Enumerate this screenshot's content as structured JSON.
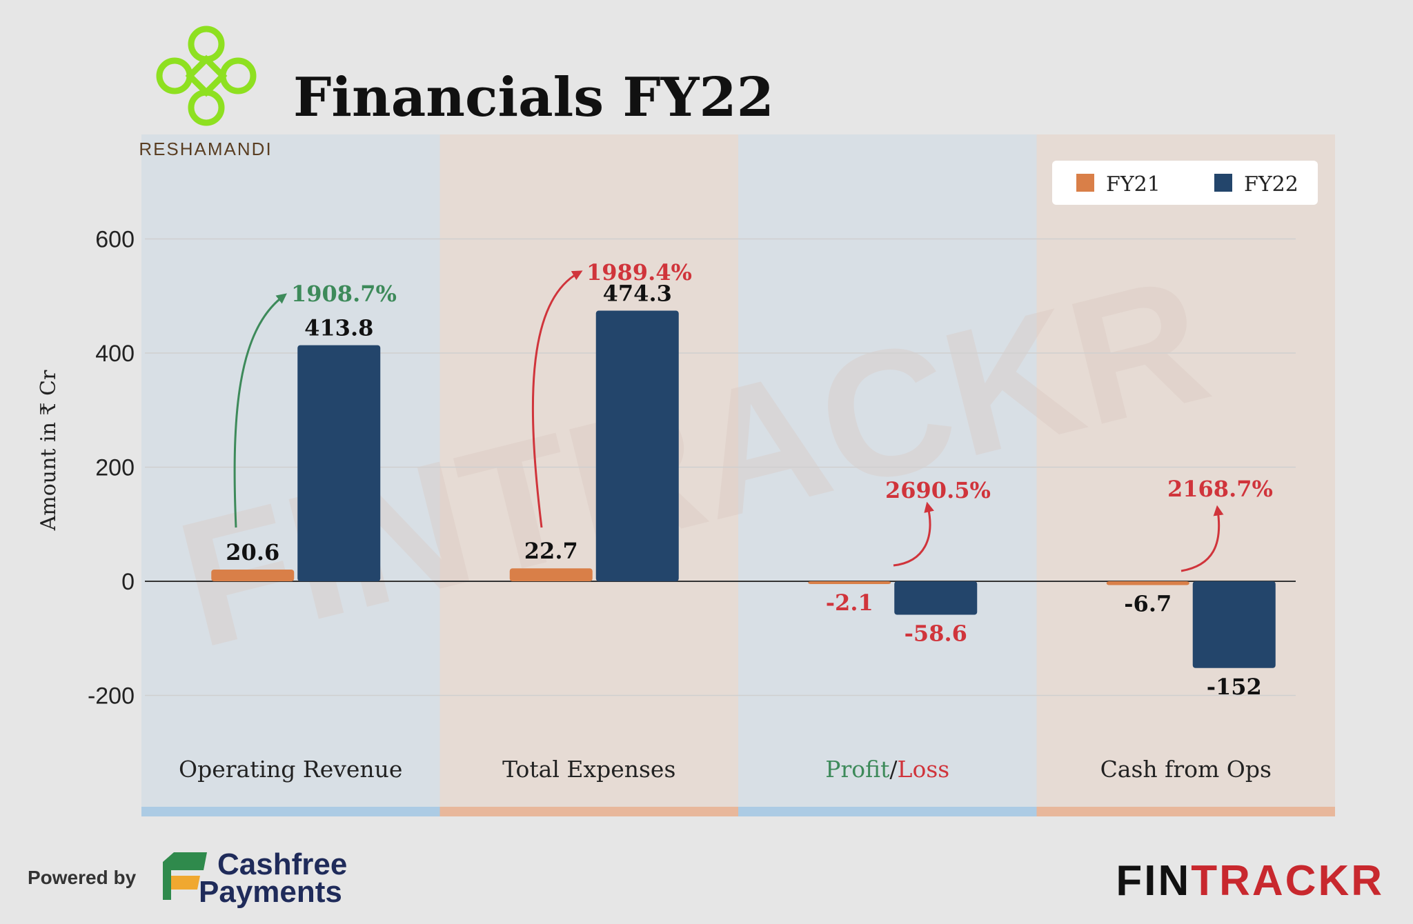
{
  "brand": {
    "company_name": "RESHAMANDI",
    "powered_by": "Powered by",
    "sponsor_line1": "Cashfree",
    "sponsor_line2": "Payments",
    "publisher_part1": "FIN",
    "publisher_part2": "TRACKR",
    "watermark": "FINTRACKR"
  },
  "colors": {
    "fy21": "#d97f48",
    "fy22": "#23456b",
    "growth_green": "#3d8a5a",
    "growth_red": "#d0343b",
    "panel_blue": "#a9c9e4",
    "panel_orange": "#e8b497"
  },
  "chart_data": {
    "type": "bar",
    "title": "Financials FY22",
    "ylabel": "Amount in ₹ Cr",
    "ylim": [
      -300,
      700
    ],
    "yticks": [
      600,
      400,
      200,
      0,
      -200
    ],
    "grid": true,
    "legend_position": "top-right",
    "categories": [
      "Operating Revenue",
      "Total Expenses",
      "Profit/Loss",
      "Cash from Ops"
    ],
    "category_label_parts": [
      [
        {
          "text": "Operating Revenue",
          "color": "#222222"
        }
      ],
      [
        {
          "text": "Total Expenses",
          "color": "#222222"
        }
      ],
      [
        {
          "text": "Profit",
          "color": "#3d8a5a"
        },
        {
          "text": "/",
          "color": "#222222"
        },
        {
          "text": "Loss",
          "color": "#d0343b"
        }
      ],
      [
        {
          "text": "Cash from Ops",
          "color": "#222222"
        }
      ]
    ],
    "series": [
      {
        "name": "FY21",
        "values": [
          20.6,
          22.7,
          -2.1,
          -6.7
        ],
        "labels": [
          "20.6",
          "22.7",
          "-2.1",
          "-6.7"
        ],
        "label_colors": [
          "#111111",
          "#111111",
          "#d0343b",
          "#111111"
        ]
      },
      {
        "name": "FY22",
        "values": [
          413.8,
          474.3,
          -58.6,
          -152
        ],
        "labels": [
          "413.8",
          "474.3",
          "-58.6",
          "-152"
        ],
        "label_colors": [
          "#111111",
          "#111111",
          "#d0343b",
          "#111111"
        ]
      }
    ],
    "annotations": [
      {
        "category": "Operating Revenue",
        "text": "1908.7%",
        "color": "#3d8a5a"
      },
      {
        "category": "Total Expenses",
        "text": "1989.4%",
        "color": "#d0343b"
      },
      {
        "category": "Profit/Loss",
        "text": "2690.5%",
        "color": "#d0343b"
      },
      {
        "category": "Cash from Ops",
        "text": "2168.7%",
        "color": "#d0343b"
      }
    ]
  }
}
